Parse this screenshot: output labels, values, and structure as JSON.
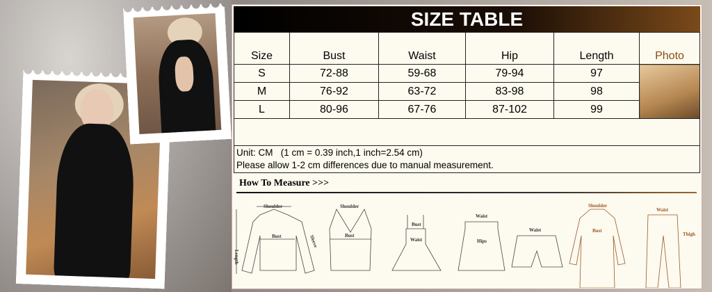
{
  "size_table": {
    "title": "SIZE TABLE",
    "headers": [
      "Size",
      "Bust",
      "Waist",
      "Hip",
      "Length",
      "Photo"
    ],
    "rows": [
      [
        "S",
        "72-88",
        "59-68",
        "79-94",
        "97"
      ],
      [
        "M",
        "76-92",
        "63-72",
        "83-98",
        "98"
      ],
      [
        "L",
        "80-96",
        "67-76",
        "87-102",
        "99"
      ]
    ],
    "unit_note": "Unit: CM   (1 cm = 0.39 inch,1 inch=2.54 cm)",
    "allowance_note": "Please allow 1-2 cm differences due to manual measurement."
  },
  "how_to_measure": {
    "title": "How To Measure >>>",
    "labels": {
      "shoulder": "Shoulder",
      "bust": "Bust",
      "sleeve": "Sleeve",
      "length": "Length",
      "waist": "Waist",
      "hips": "Hips",
      "thigh": "Thigh"
    }
  },
  "colors": {
    "title_bar": "#000000",
    "panel": "#fdfaef",
    "accent": "#a0652a"
  }
}
